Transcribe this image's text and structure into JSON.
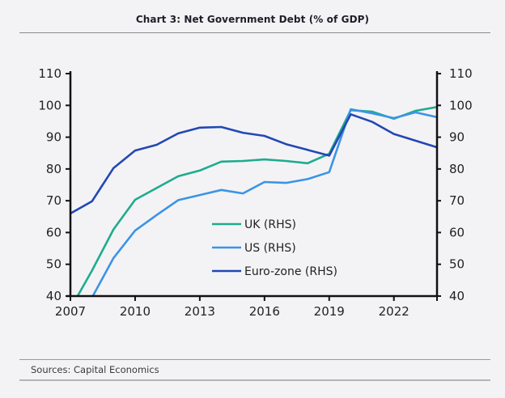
{
  "header": {
    "title": "Chart 3: Net Government Debt (% of GDP)"
  },
  "footer": {
    "source": "Sources: Capital Economics"
  },
  "chart_data": {
    "type": "line",
    "title": "Chart 3: Net Government Debt (% of GDP)",
    "xlabel": "",
    "ylabel": "",
    "x": [
      2007,
      2008,
      2009,
      2010,
      2011,
      2012,
      2013,
      2014,
      2015,
      2016,
      2017,
      2018,
      2019,
      2020,
      2021,
      2022,
      2023,
      2024
    ],
    "xlim": [
      2007,
      2024
    ],
    "x_ticks": [
      2007,
      2010,
      2013,
      2016,
      2019,
      2022
    ],
    "ylim": [
      40,
      110
    ],
    "y_ticks": [
      40,
      50,
      60,
      70,
      80,
      90,
      100,
      110
    ],
    "y_axes": [
      "left",
      "right"
    ],
    "grid": false,
    "legend_position": "center",
    "series": [
      {
        "name": "UK (RHS)",
        "color": "#1fab8e",
        "values": [
          36,
          48,
          61,
          70.3,
          74,
          77.7,
          79.5,
          82.3,
          82.5,
          83,
          82.5,
          81.8,
          84.8,
          98.5,
          98,
          95.8,
          98.3,
          99.5
        ]
      },
      {
        "name": "US (RHS)",
        "color": "#3b94e6",
        "values": [
          32,
          39.5,
          52,
          60.6,
          65.5,
          70.2,
          71.8,
          73.4,
          72.3,
          75.9,
          75.6,
          76.8,
          79,
          98.8,
          97.5,
          96,
          97.8,
          96.3
        ]
      },
      {
        "name": "Euro-zone (RHS)",
        "color": "#2347b5",
        "values": [
          66,
          69.8,
          80.3,
          85.8,
          87.6,
          91.2,
          93,
          93.2,
          91.4,
          90.4,
          87.8,
          86,
          84.2,
          97.2,
          94.8,
          91,
          88.9,
          86.8
        ]
      }
    ]
  }
}
